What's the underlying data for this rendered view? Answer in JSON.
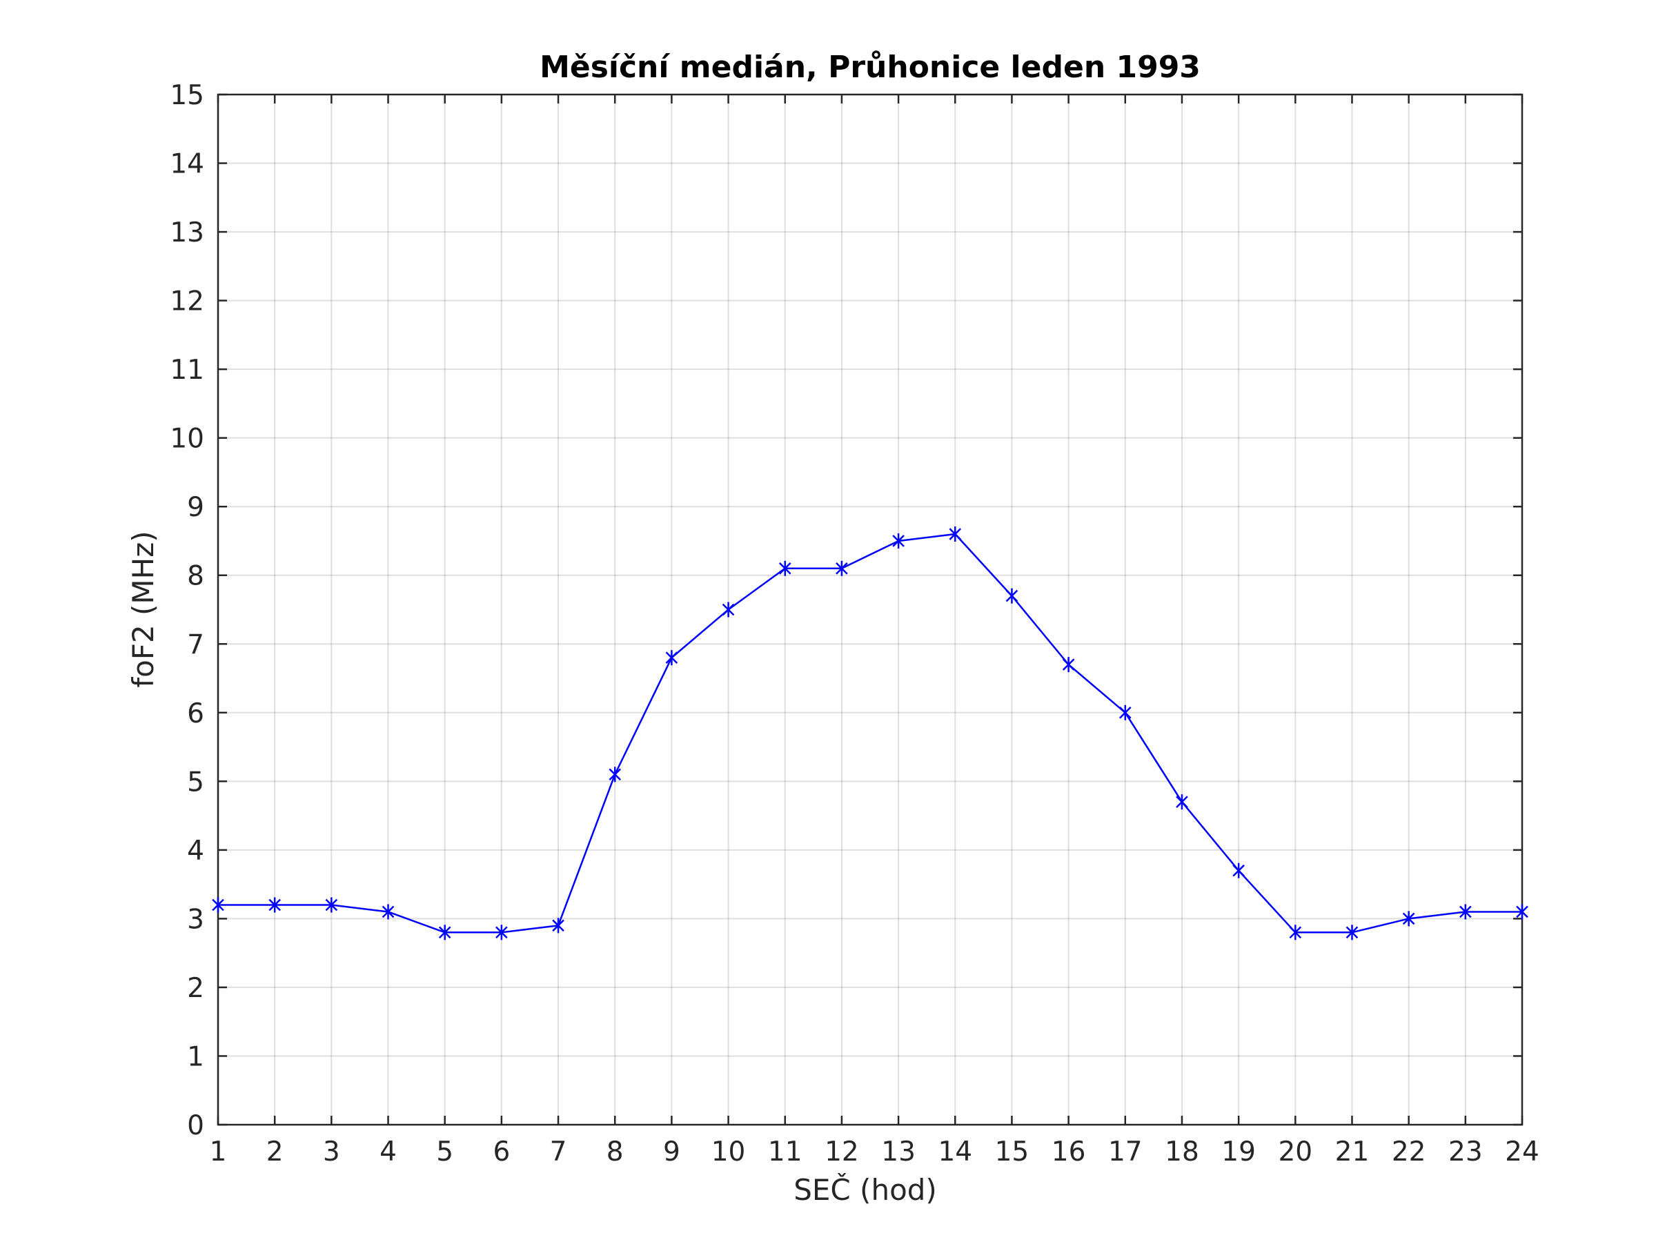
{
  "chart_data": {
    "type": "line",
    "title": "Měsíční medián, Průhonice leden 1993",
    "xlabel": "SEČ (hod)",
    "ylabel": "foF2 (MHz)",
    "xlim": [
      1,
      24
    ],
    "ylim": [
      0,
      15
    ],
    "xticks": [
      1,
      2,
      3,
      4,
      5,
      6,
      7,
      8,
      9,
      10,
      11,
      12,
      13,
      14,
      15,
      16,
      17,
      18,
      19,
      20,
      21,
      22,
      23,
      24
    ],
    "yticks": [
      0,
      1,
      2,
      3,
      4,
      5,
      6,
      7,
      8,
      9,
      10,
      11,
      12,
      13,
      14,
      15
    ],
    "grid": true,
    "marker": "asterisk",
    "series": [
      {
        "color": "#0000ff",
        "x": [
          1,
          2,
          3,
          4,
          5,
          6,
          7,
          8,
          9,
          10,
          11,
          12,
          13,
          14,
          15,
          16,
          17,
          18,
          19,
          20,
          21,
          22,
          23,
          24
        ],
        "values": [
          3.2,
          3.2,
          3.2,
          3.1,
          2.8,
          2.8,
          2.9,
          5.1,
          6.8,
          7.5,
          8.1,
          8.1,
          8.5,
          8.6,
          7.7,
          6.7,
          6.0,
          4.7,
          3.7,
          2.8,
          2.8,
          3.0,
          3.1,
          3.1
        ]
      }
    ]
  }
}
